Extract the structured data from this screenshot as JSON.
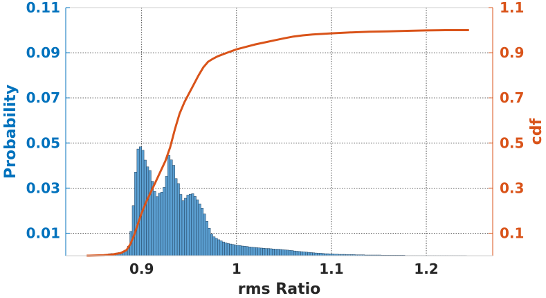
{
  "chart_data": {
    "type": "bar",
    "subtype": "histogram with cumulative distribution line on secondary axis",
    "xlabel": "rms Ratio",
    "ylabel": "Probability",
    "y2label": "cdf",
    "xlim": [
      0.82,
      1.27
    ],
    "ylim": [
      0,
      0.11
    ],
    "y2lim": [
      0,
      1.1
    ],
    "xticks": [
      "0.9",
      "1",
      "1.1",
      "1.2"
    ],
    "xtick_values": [
      0.9,
      1.0,
      1.1,
      1.2
    ],
    "yticks": [
      "0.01",
      "0.03",
      "0.05",
      "0.07",
      "0.09",
      "0.11"
    ],
    "ytick_values": [
      0.01,
      0.03,
      0.05,
      0.07,
      0.09,
      0.11
    ],
    "y2ticks": [
      "0.1",
      "0.3",
      "0.5",
      "0.7",
      "0.9",
      "1.1"
    ],
    "y2tick_values": [
      0.1,
      0.3,
      0.5,
      0.7,
      0.9,
      1.1
    ],
    "grid": true,
    "colors": {
      "bars": "#5b9fd1",
      "bar_edge": "#1f3f5c",
      "cdf": "#d95319",
      "left_axis": "#0072bd",
      "right_axis": "#d95319",
      "xaxis": "#262626"
    },
    "series": [
      {
        "type": "bar",
        "bins": [
          [
            0.8575,
            0.0005
          ],
          [
            0.86,
            0.0005
          ],
          [
            0.8625,
            0.0007
          ],
          [
            0.865,
            0.0009
          ],
          [
            0.8675,
            0.001
          ],
          [
            0.87,
            0.001
          ],
          [
            0.8725,
            0.0012
          ],
          [
            0.875,
            0.0014
          ],
          [
            0.8775,
            0.0016
          ],
          [
            0.88,
            0.002
          ],
          [
            0.8825,
            0.0027
          ],
          [
            0.885,
            0.0042
          ],
          [
            0.8875,
            0.0108
          ],
          [
            0.89,
            0.0222
          ],
          [
            0.8925,
            0.0371
          ],
          [
            0.895,
            0.0473
          ],
          [
            0.8975,
            0.0483
          ],
          [
            0.9,
            0.0468
          ],
          [
            0.9025,
            0.0424
          ],
          [
            0.905,
            0.0394
          ],
          [
            0.9075,
            0.0378
          ],
          [
            0.91,
            0.033
          ],
          [
            0.9125,
            0.0285
          ],
          [
            0.915,
            0.0262
          ],
          [
            0.9175,
            0.0277
          ],
          [
            0.92,
            0.0282
          ],
          [
            0.9225,
            0.0303
          ],
          [
            0.925,
            0.0352
          ],
          [
            0.9275,
            0.0445
          ],
          [
            0.93,
            0.0425
          ],
          [
            0.9325,
            0.0401
          ],
          [
            0.935,
            0.0342
          ],
          [
            0.9375,
            0.032
          ],
          [
            0.94,
            0.0272
          ],
          [
            0.9425,
            0.0244
          ],
          [
            0.945,
            0.0255
          ],
          [
            0.9475,
            0.0269
          ],
          [
            0.95,
            0.0273
          ],
          [
            0.9525,
            0.0275
          ],
          [
            0.955,
            0.0263
          ],
          [
            0.9575,
            0.0248
          ],
          [
            0.96,
            0.023
          ],
          [
            0.9625,
            0.0211
          ],
          [
            0.965,
            0.0185
          ],
          [
            0.9675,
            0.0153
          ],
          [
            0.97,
            0.0122
          ],
          [
            0.9725,
            0.0096
          ],
          [
            0.975,
            0.0084
          ],
          [
            0.9775,
            0.0077
          ],
          [
            0.98,
            0.0071
          ],
          [
            0.9825,
            0.0066
          ],
          [
            0.985,
            0.0061
          ],
          [
            0.9875,
            0.0057
          ],
          [
            0.99,
            0.0054
          ],
          [
            0.9925,
            0.0052
          ],
          [
            0.995,
            0.005
          ],
          [
            0.9975,
            0.0048
          ],
          [
            1.0,
            0.0046
          ],
          [
            1.0025,
            0.0045
          ],
          [
            1.005,
            0.0043
          ],
          [
            1.0075,
            0.0042
          ],
          [
            1.01,
            0.0041
          ],
          [
            1.0125,
            0.0039
          ],
          [
            1.015,
            0.0038
          ],
          [
            1.0175,
            0.0037
          ],
          [
            1.02,
            0.0036
          ],
          [
            1.0225,
            0.0035
          ],
          [
            1.025,
            0.0034
          ],
          [
            1.0275,
            0.0033
          ],
          [
            1.03,
            0.0032
          ],
          [
            1.0325,
            0.0032
          ],
          [
            1.035,
            0.0031
          ],
          [
            1.0375,
            0.003
          ],
          [
            1.04,
            0.0029
          ],
          [
            1.0425,
            0.0029
          ],
          [
            1.045,
            0.0028
          ],
          [
            1.0475,
            0.0027
          ],
          [
            1.05,
            0.0026
          ],
          [
            1.0525,
            0.0025
          ],
          [
            1.055,
            0.0024
          ],
          [
            1.0575,
            0.0023
          ],
          [
            1.06,
            0.0021
          ],
          [
            1.0625,
            0.002
          ],
          [
            1.065,
            0.0019
          ],
          [
            1.0675,
            0.0018
          ],
          [
            1.07,
            0.0017
          ],
          [
            1.0725,
            0.0016
          ],
          [
            1.075,
            0.0015
          ],
          [
            1.0775,
            0.0014
          ],
          [
            1.08,
            0.0013
          ],
          [
            1.0825,
            0.0012
          ],
          [
            1.085,
            0.0011
          ],
          [
            1.0875,
            0.0011
          ],
          [
            1.09,
            0.001
          ],
          [
            1.0925,
            0.0009
          ],
          [
            1.095,
            0.0009
          ],
          [
            1.0975,
            0.0008
          ],
          [
            1.1,
            0.0008
          ],
          [
            1.1025,
            0.0007
          ],
          [
            1.105,
            0.0007
          ],
          [
            1.1075,
            0.0006
          ],
          [
            1.11,
            0.0006
          ],
          [
            1.1125,
            0.0006
          ],
          [
            1.115,
            0.0005
          ],
          [
            1.1175,
            0.0005
          ],
          [
            1.12,
            0.0005
          ],
          [
            1.1225,
            0.0005
          ],
          [
            1.125,
            0.0004
          ],
          [
            1.1275,
            0.0004
          ],
          [
            1.13,
            0.0004
          ],
          [
            1.1325,
            0.0004
          ],
          [
            1.135,
            0.0003
          ],
          [
            1.1375,
            0.0003
          ],
          [
            1.14,
            0.0003
          ],
          [
            1.1425,
            0.0003
          ],
          [
            1.145,
            0.0003
          ],
          [
            1.1475,
            0.0003
          ],
          [
            1.15,
            0.0003
          ],
          [
            1.1525,
            0.0002
          ],
          [
            1.155,
            0.0002
          ],
          [
            1.1575,
            0.0002
          ],
          [
            1.16,
            0.0002
          ],
          [
            1.1625,
            0.0002
          ],
          [
            1.165,
            0.0002
          ],
          [
            1.1675,
            0.0002
          ],
          [
            1.17,
            0.0002
          ],
          [
            1.1725,
            0.0002
          ],
          [
            1.175,
            0.0002
          ],
          [
            1.1775,
            0.0001
          ],
          [
            1.18,
            0.0001
          ],
          [
            1.1825,
            0.0001
          ],
          [
            1.185,
            0.0001
          ],
          [
            1.1875,
            0.0001
          ],
          [
            1.19,
            0.0001
          ],
          [
            1.1925,
            0.0001
          ],
          [
            1.195,
            0.0001
          ],
          [
            1.1975,
            0.0001
          ],
          [
            1.2,
            0.0001
          ],
          [
            1.2025,
            0.0001
          ],
          [
            1.205,
            0.0001
          ],
          [
            1.2075,
            0.0001
          ],
          [
            1.21,
            0.0001
          ],
          [
            1.2125,
            0.0001
          ],
          [
            1.215,
            0.0001
          ],
          [
            1.2175,
            0.0001
          ],
          [
            1.22,
            0.0001
          ],
          [
            1.2225,
            0.0001
          ],
          [
            1.225,
            0.0001
          ],
          [
            1.2275,
            0.0001
          ],
          [
            1.23,
            0.0001
          ],
          [
            1.2325,
            0.0001
          ],
          [
            1.235,
            0.0001
          ],
          [
            1.2375,
            0.0001
          ],
          [
            1.24,
            0.0001
          ]
        ]
      },
      {
        "type": "line",
        "axis": "right",
        "points": [
          [
            0.842,
            0.0
          ],
          [
            0.86,
            0.002
          ],
          [
            0.87,
            0.006
          ],
          [
            0.878,
            0.012
          ],
          [
            0.884,
            0.025
          ],
          [
            0.888,
            0.05
          ],
          [
            0.892,
            0.09
          ],
          [
            0.896,
            0.14
          ],
          [
            0.9,
            0.19
          ],
          [
            0.905,
            0.24
          ],
          [
            0.91,
            0.285
          ],
          [
            0.915,
            0.33
          ],
          [
            0.92,
            0.375
          ],
          [
            0.925,
            0.42
          ],
          [
            0.93,
            0.48
          ],
          [
            0.935,
            0.56
          ],
          [
            0.94,
            0.63
          ],
          [
            0.945,
            0.68
          ],
          [
            0.95,
            0.72
          ],
          [
            0.955,
            0.76
          ],
          [
            0.96,
            0.8
          ],
          [
            0.965,
            0.835
          ],
          [
            0.97,
            0.86
          ],
          [
            0.975,
            0.873
          ],
          [
            0.98,
            0.884
          ],
          [
            0.99,
            0.9
          ],
          [
            1.0,
            0.915
          ],
          [
            1.01,
            0.926
          ],
          [
            1.02,
            0.937
          ],
          [
            1.03,
            0.946
          ],
          [
            1.04,
            0.955
          ],
          [
            1.05,
            0.964
          ],
          [
            1.06,
            0.972
          ],
          [
            1.07,
            0.977
          ],
          [
            1.08,
            0.981
          ],
          [
            1.1,
            0.986
          ],
          [
            1.12,
            0.99
          ],
          [
            1.14,
            0.993
          ],
          [
            1.16,
            0.995
          ],
          [
            1.18,
            0.997
          ],
          [
            1.2,
            0.999
          ],
          [
            1.22,
            1.0
          ],
          [
            1.245,
            1.0
          ]
        ]
      }
    ]
  }
}
